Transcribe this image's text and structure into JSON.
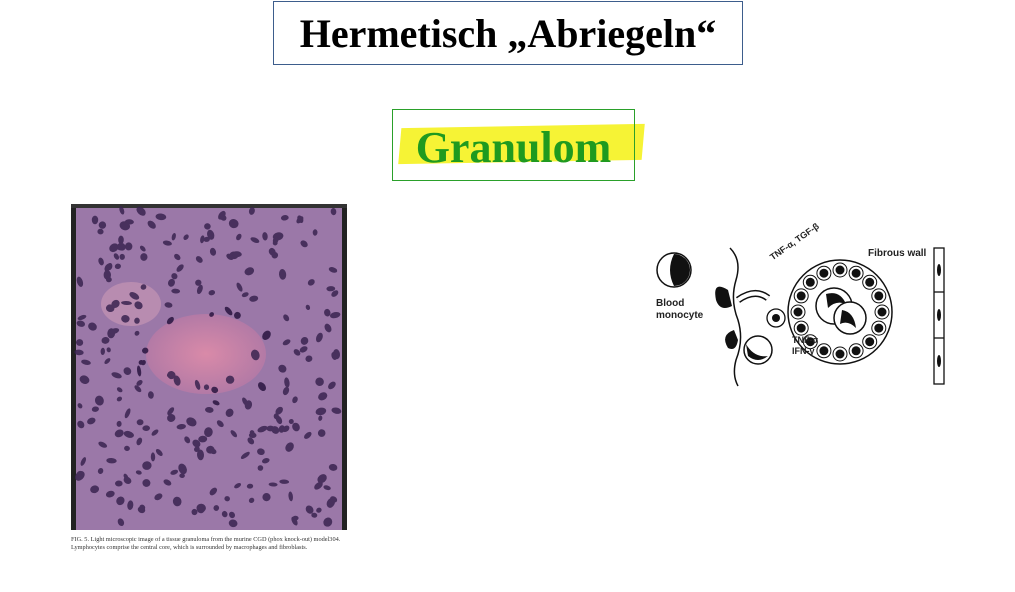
{
  "title": "Hermetisch „Abriegeln“",
  "subtitle": "Granulom",
  "figure_caption": "FIG. 5. Light microscopic image of a tissue granuloma from the murine CGD (phox knock-out) model304. Lymphocytes comprise the central core, which is surrounded by macrophages and fibroblasts.",
  "diagram": {
    "label_blood": "Blood",
    "label_monocyte": "monocyte",
    "label_wall": "Fibrous wall",
    "label_tnf_tgf": "TNF-α, TGF-β",
    "label_tnf": "TNF-α",
    "label_ifn": "IFN-γ"
  },
  "colors": {
    "title_border": "#3d5d8c",
    "subtitle_border": "#2aa02a",
    "subtitle_text": "#1f9a1f",
    "highlight": "#f6f22a"
  }
}
